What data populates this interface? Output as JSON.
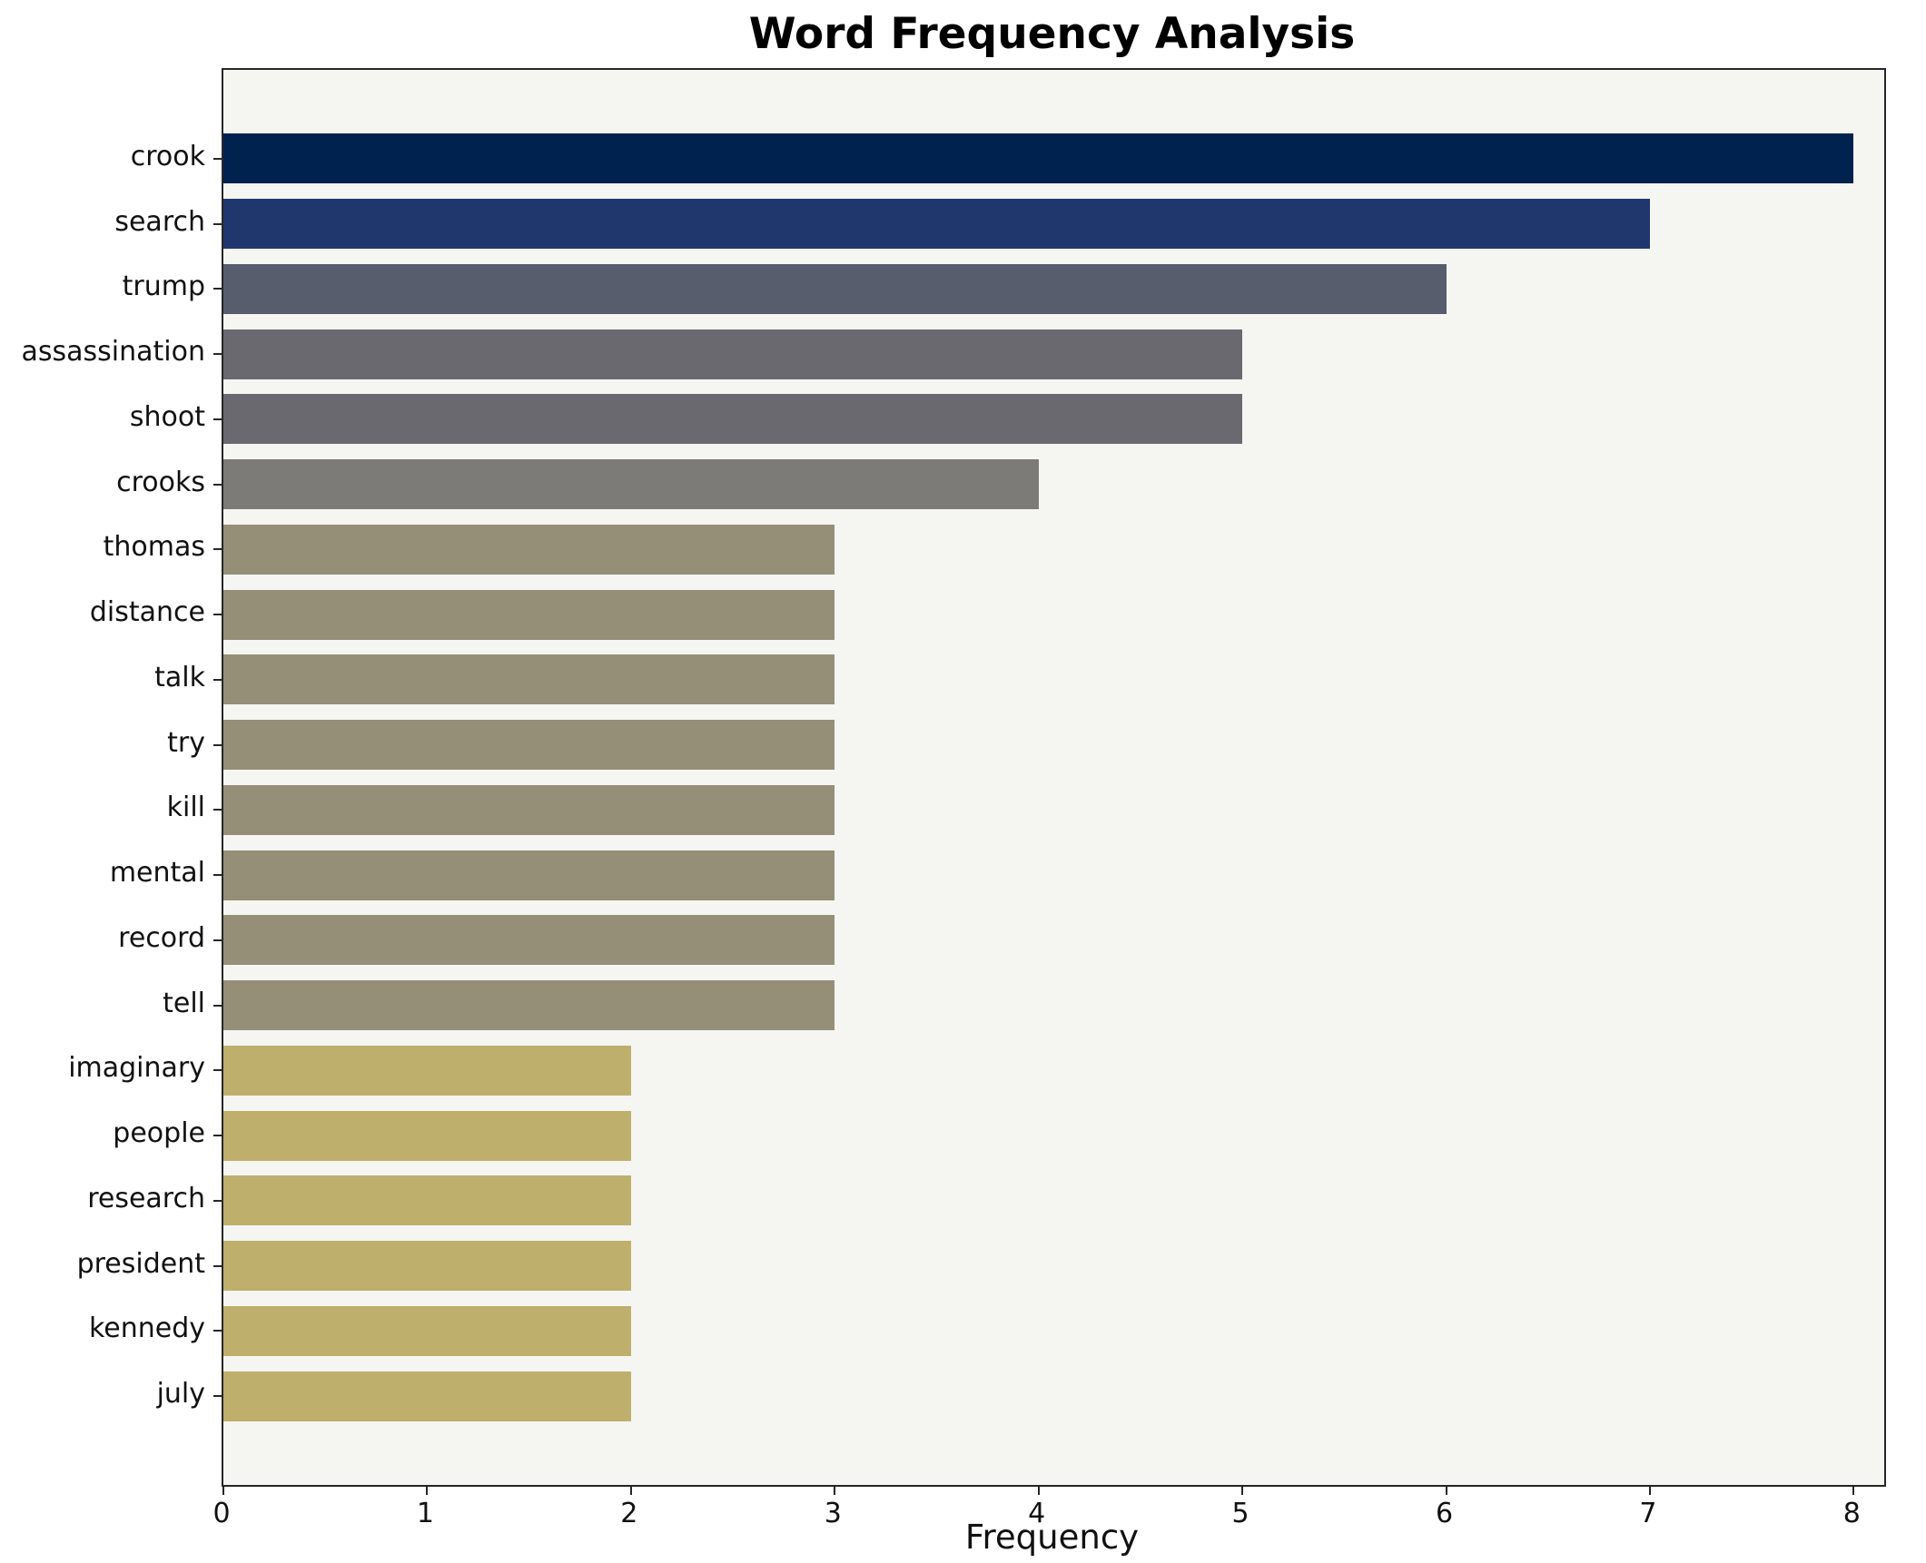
{
  "chart_data": {
    "type": "bar",
    "orientation": "horizontal",
    "title": "Word Frequency Analysis",
    "xlabel": "Frequency",
    "ylabel": "",
    "categories": [
      "crook",
      "search",
      "trump",
      "assassination",
      "shoot",
      "crooks",
      "thomas",
      "distance",
      "talk",
      "try",
      "kill",
      "mental",
      "record",
      "tell",
      "imaginary",
      "people",
      "research",
      "president",
      "kennedy",
      "july"
    ],
    "values": [
      8,
      7,
      6,
      5,
      5,
      4,
      3,
      3,
      3,
      3,
      3,
      3,
      3,
      3,
      2,
      2,
      2,
      2,
      2,
      2
    ],
    "bar_colors": [
      "#00224e",
      "#20376e",
      "#575d6d",
      "#6a6970",
      "#6a6970",
      "#7c7b78",
      "#958f78",
      "#958f78",
      "#958f78",
      "#958f78",
      "#958f78",
      "#958f78",
      "#958f78",
      "#958f78",
      "#beb06c",
      "#beb06c",
      "#beb06c",
      "#beb06c",
      "#beb06c",
      "#beb06c"
    ],
    "x_ticks": [
      0,
      1,
      2,
      3,
      4,
      5,
      6,
      7,
      8
    ],
    "xlim": [
      0,
      8.15
    ],
    "grid": false,
    "legend": null,
    "plot_background": "#f5f5f2",
    "figure_background": "#ffffff",
    "spine_color": "#262626"
  }
}
